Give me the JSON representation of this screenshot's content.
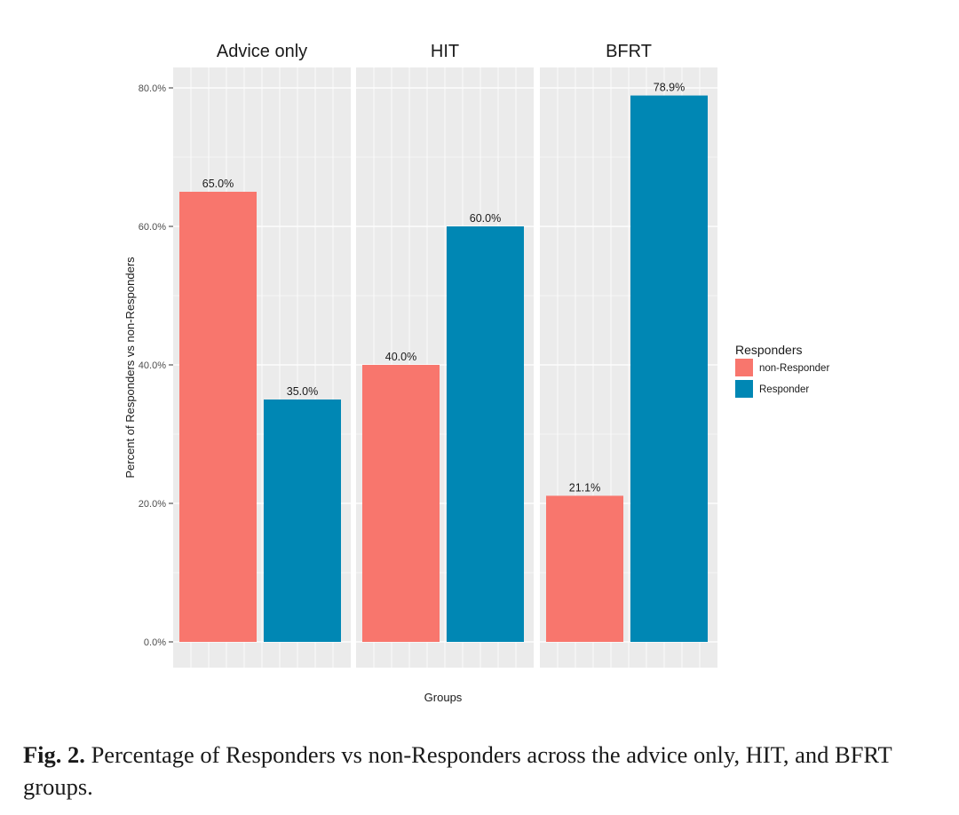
{
  "chart_data": {
    "type": "bar",
    "facets": [
      "Advice only",
      "HIT",
      "BFRT"
    ],
    "series": [
      {
        "name": "non-Responder",
        "color": "#F8766D",
        "values": [
          65.0,
          40.0,
          21.1
        ],
        "labels": [
          "65.0%",
          "40.0%",
          "21.1%"
        ]
      },
      {
        "name": "Responder",
        "color": "#0087B4",
        "values": [
          35.0,
          60.0,
          78.9
        ],
        "labels": [
          "35.0%",
          "60.0%",
          "78.9%"
        ]
      }
    ],
    "xlabel": "Groups",
    "ylabel": "Percent of Responders vs non-Responders",
    "ylim": [
      0,
      80
    ],
    "yticks": [
      0,
      20,
      40,
      60,
      80
    ],
    "ytick_labels": [
      "0.0%",
      "20.0%",
      "40.0%",
      "60.0%",
      "80.0%"
    ],
    "legend": {
      "title": "Responders",
      "position": "right"
    },
    "grid": true,
    "panel_background": "#EBEBEB"
  },
  "caption": {
    "label": "Fig. 2.",
    "text": "Percentage of Responders vs non-Responders across the advice only, HIT, and BFRT groups."
  }
}
